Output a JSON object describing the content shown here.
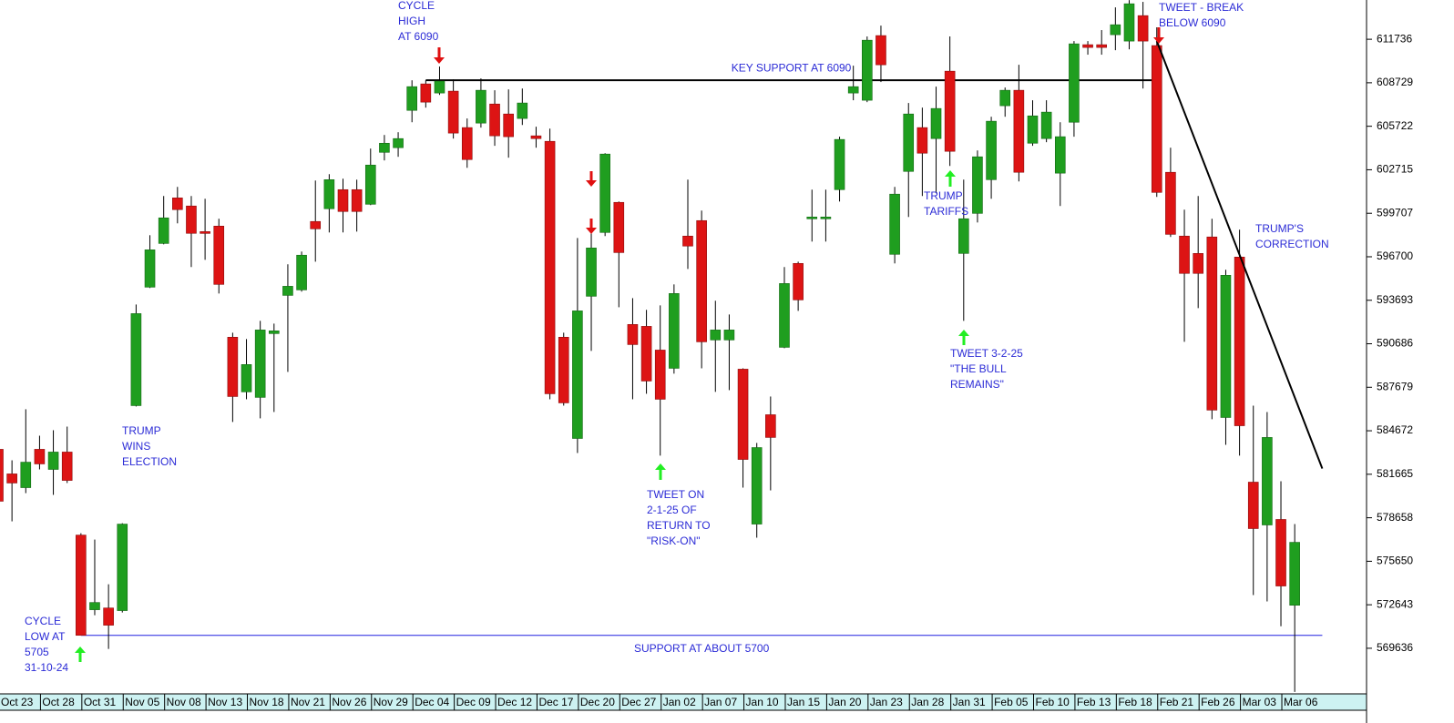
{
  "chart_data": {
    "type": "candlestick",
    "categories": [
      "Oct 23",
      null,
      null,
      "Oct 28",
      null,
      null,
      "Oct 31",
      null,
      null,
      "Nov 05",
      null,
      null,
      "Nov 08",
      null,
      null,
      "Nov 13",
      null,
      null,
      "Nov 18",
      null,
      null,
      "Nov 21",
      null,
      null,
      "Nov 26",
      null,
      null,
      "Nov 29",
      null,
      null,
      "Dec 04",
      null,
      null,
      "Dec 09",
      null,
      null,
      "Dec 12",
      null,
      null,
      "Dec 17",
      null,
      null,
      "Dec 20",
      null,
      null,
      "Dec 27",
      null,
      null,
      "Jan 02",
      null,
      null,
      "Jan 07",
      null,
      null,
      "Jan 10",
      null,
      null,
      "Jan 15",
      null,
      null,
      "Jan 20",
      null,
      null,
      "Jan 23",
      null,
      null,
      "Jan 28",
      null,
      null,
      "Jan 31",
      null,
      null,
      "Feb 05",
      null,
      null,
      "Feb 10",
      null,
      null,
      "Feb 13",
      null,
      null,
      "Feb 18",
      null,
      null,
      "Feb 21",
      null,
      null,
      "Feb 26",
      null,
      null,
      "Mar 03",
      null,
      null,
      "Mar 06",
      null
    ],
    "open": [
      583390,
      581690,
      580740,
      583390,
      582000,
      583200,
      577460,
      572300,
      572420,
      572240,
      586410,
      594600,
      597620,
      600770,
      600210,
      598440,
      598820,
      591140,
      587360,
      586980,
      591390,
      594030,
      594410,
      599140,
      600020,
      601340,
      601340,
      600330,
      603920,
      604240,
      606820,
      608650,
      608020,
      608150,
      605630,
      605940,
      607260,
      606570,
      606260,
      605060,
      604680,
      591140,
      584140,
      593970,
      598380,
      600460,
      592020,
      591890,
      590250,
      588990,
      598130,
      599200,
      590950,
      590950,
      588930,
      578220,
      585780,
      590440,
      596240,
      599330,
      599330,
      601340,
      608020,
      607520,
      611990,
      596870,
      602600,
      605630,
      604870,
      609530,
      596930,
      599700,
      602030,
      607140,
      608210,
      604550,
      604870,
      602480,
      606000,
      611360,
      611360,
      612050,
      611610,
      613370,
      611300,
      602540,
      598130,
      596930,
      598070,
      585590,
      596680,
      581120,
      578160,
      578540,
      572610
    ],
    "high": [
      583580,
      582630,
      586160,
      584330,
      584710,
      584960,
      577590,
      577150,
      574060,
      578280,
      593400,
      598190,
      600900,
      601530,
      600900,
      600710,
      599330,
      591450,
      591010,
      592270,
      592080,
      596180,
      597060,
      601970,
      602410,
      602100,
      602030,
      604180,
      605120,
      605310,
      608900,
      608900,
      609850,
      608960,
      606260,
      609030,
      608210,
      608270,
      608330,
      605690,
      605560,
      591450,
      598000,
      599010,
      603860,
      600520,
      593840,
      593030,
      593340,
      594790,
      602030,
      599890,
      593660,
      592710,
      588990,
      583830,
      587040,
      595990,
      596360,
      601340,
      601340,
      605000,
      609910,
      611930,
      612680,
      601530,
      607330,
      607010,
      608460,
      611930,
      602030,
      604050,
      606380,
      608400,
      609970,
      607520,
      607520,
      606000,
      611610,
      611610,
      612370,
      613940,
      614440,
      614320,
      612560,
      604240,
      599960,
      600900,
      599330,
      595800,
      598570,
      586410,
      585970,
      581180,
      578220
    ],
    "low": [
      579480,
      578410,
      580360,
      582000,
      580240,
      581060,
      570530,
      571920,
      569590,
      572110,
      586350,
      594540,
      597560,
      599010,
      595990,
      596490,
      594160,
      585280,
      586850,
      585530,
      585970,
      588740,
      594290,
      596360,
      598380,
      598380,
      598440,
      600270,
      603360,
      603610,
      606000,
      607010,
      607890,
      604870,
      602850,
      605630,
      604370,
      603550,
      605810,
      604240,
      586850,
      586410,
      583130,
      590190,
      598130,
      593210,
      586850,
      587230,
      582950,
      588620,
      595860,
      588990,
      587360,
      587480,
      580740,
      577280,
      580550,
      590380,
      592960,
      597750,
      597750,
      600520,
      607520,
      607390,
      608780,
      596240,
      599450,
      600900,
      601090,
      602980,
      592270,
      599070,
      600710,
      606380,
      601910,
      604370,
      604620,
      600210,
      605000,
      610670,
      610670,
      610980,
      611040,
      608330,
      600840,
      598070,
      590820,
      593150,
      585470,
      583700,
      582950,
      573310,
      572870,
      571160,
      566620
    ],
    "close": [
      579800,
      581060,
      582500,
      582380,
      583200,
      581240,
      570530,
      572800,
      571230,
      578220,
      592770,
      597180,
      599390,
      599960,
      598320,
      598320,
      594790,
      587040,
      589250,
      591640,
      591580,
      594660,
      596810,
      598630,
      602030,
      599830,
      599830,
      603040,
      604550,
      604870,
      608460,
      607390,
      608840,
      605250,
      603420,
      608210,
      605060,
      605000,
      607330,
      604870,
      587230,
      586600,
      592960,
      597310,
      603800,
      596990,
      590630,
      588110,
      586850,
      594160,
      597440,
      590820,
      591640,
      591640,
      582690,
      583510,
      584210,
      594850,
      593720,
      599450,
      599450,
      604810,
      608460,
      611670,
      609970,
      601030,
      606570,
      603860,
      606950,
      603990,
      599330,
      603610,
      606070,
      608210,
      602540,
      606440,
      606700,
      605000,
      611420,
      611170,
      611170,
      612740,
      614190,
      611610,
      601150,
      598250,
      595550,
      595550,
      586100,
      595420,
      585020,
      577910,
      584210,
      573940,
      576960
    ],
    "up_color": "#1f9e1f",
    "down_color": "#dd1414",
    "ylim": [
      566610,
      614450
    ],
    "yticks": [
      569636,
      572643,
      575650,
      578658,
      581665,
      584672,
      587679,
      590686,
      593693,
      596700,
      599707,
      602715,
      605722,
      608729,
      611736
    ],
    "reference_lines": [
      {
        "label": "KEY SUPPORT AT 6090",
        "value": 608900,
        "x": [
          31,
          84
        ],
        "color": "#000000"
      },
      {
        "label": "SUPPORT AT ABOUT 5700",
        "value": 570530,
        "x": [
          6,
          96
        ],
        "color": "#2020e0"
      }
    ],
    "trend_line": {
      "x": [
        84,
        96
      ],
      "y": [
        611610,
        582060
      ],
      "color": "#000000"
    },
    "annotation_color": "#2b2bd6",
    "annotations": [
      {
        "lines": [
          "CYCLE",
          "HIGH",
          "AT 6090"
        ]
      },
      {
        "lines": [
          "TWEET - BREAK",
          "BELOW 6090"
        ]
      },
      {
        "lines": [
          "TRUMP'S",
          "CORRECTION"
        ]
      },
      {
        "lines": [
          "TRUMP",
          "TARIFFS"
        ]
      },
      {
        "lines": [
          "TWEET 3-2-25",
          "\"THE BULL",
          "REMAINS\""
        ]
      },
      {
        "lines": [
          "TRUMP",
          "WINS",
          "ELECTION"
        ]
      },
      {
        "lines": [
          "TWEET ON",
          "2-1-25 OF",
          "RETURN TO",
          "\"RISK-ON\""
        ]
      },
      {
        "lines": [
          "CYCLE",
          "LOW AT",
          "5705",
          "31-10-24"
        ]
      }
    ]
  }
}
